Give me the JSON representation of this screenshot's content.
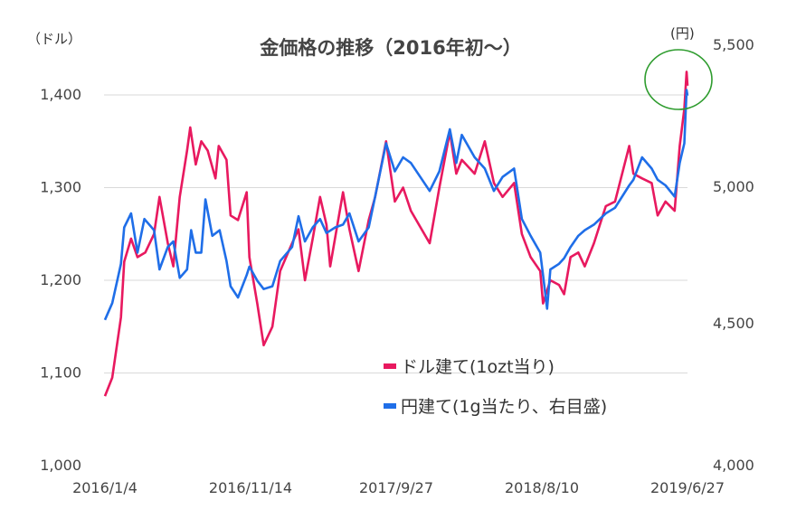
{
  "chart_data": {
    "type": "line",
    "title": "金価格の推移（2016年初～）",
    "y_left_unit": "（ドル）",
    "y_right_unit": "(円)",
    "x_ticks": [
      "2016/1/4",
      "2016/11/14",
      "2017/9/27",
      "2018/8/10",
      "2019/6/27"
    ],
    "y_left_ticks": [
      "1,000",
      "1,100",
      "1,200",
      "1,300",
      "1,400"
    ],
    "y_right_ticks": [
      "4,000",
      "4,500",
      "5,000",
      "5,500"
    ],
    "ylim_left": [
      1000,
      1400
    ],
    "ylim_right": [
      4000,
      5500
    ],
    "grid": "horizontal",
    "legend_position": "bottom-right inside plot",
    "series": [
      {
        "name": "ドル建て(1ozt当り)",
        "axis": "left",
        "color": "#e8195f",
        "points": [
          [
            "2016/1/4",
            1075
          ],
          [
            "2016/1/20",
            1095
          ],
          [
            "2016/2/8",
            1160
          ],
          [
            "2016/2/15",
            1220
          ],
          [
            "2016/3/1",
            1245
          ],
          [
            "2016/3/15",
            1225
          ],
          [
            "2016/4/1",
            1230
          ],
          [
            "2016/4/20",
            1250
          ],
          [
            "2016/5/2",
            1290
          ],
          [
            "2016/5/20",
            1240
          ],
          [
            "2016/6/1",
            1215
          ],
          [
            "2016/6/15",
            1290
          ],
          [
            "2016/7/1",
            1340
          ],
          [
            "2016/7/8",
            1365
          ],
          [
            "2016/7/20",
            1325
          ],
          [
            "2016/8/1",
            1350
          ],
          [
            "2016/8/15",
            1340
          ],
          [
            "2016/9/1",
            1310
          ],
          [
            "2016/9/8",
            1345
          ],
          [
            "2016/9/25",
            1330
          ],
          [
            "2016/10/4",
            1270
          ],
          [
            "2016/10/20",
            1265
          ],
          [
            "2016/11/8",
            1295
          ],
          [
            "2016/11/14",
            1225
          ],
          [
            "2016/12/1",
            1175
          ],
          [
            "2016/12/15",
            1130
          ],
          [
            "2017/1/3",
            1150
          ],
          [
            "2017/1/20",
            1210
          ],
          [
            "2017/2/15",
            1240
          ],
          [
            "2017/3/1",
            1255
          ],
          [
            "2017/3/15",
            1200
          ],
          [
            "2017/4/1",
            1245
          ],
          [
            "2017/4/17",
            1290
          ],
          [
            "2017/5/1",
            1260
          ],
          [
            "2017/5/9",
            1215
          ],
          [
            "2017/6/6",
            1295
          ],
          [
            "2017/6/20",
            1255
          ],
          [
            "2017/7/10",
            1210
          ],
          [
            "2017/8/1",
            1265
          ],
          [
            "2017/8/15",
            1290
          ],
          [
            "2017/9/8",
            1350
          ],
          [
            "2017/9/27",
            1285
          ],
          [
            "2017/10/15",
            1300
          ],
          [
            "2017/11/1",
            1275
          ],
          [
            "2017/12/12",
            1240
          ],
          [
            "2018/1/2",
            1300
          ],
          [
            "2018/1/25",
            1360
          ],
          [
            "2018/2/8",
            1315
          ],
          [
            "2018/2/20",
            1330
          ],
          [
            "2018/3/20",
            1315
          ],
          [
            "2018/4/11",
            1350
          ],
          [
            "2018/5/1",
            1305
          ],
          [
            "2018/5/20",
            1290
          ],
          [
            "2018/6/14",
            1305
          ],
          [
            "2018/7/1",
            1250
          ],
          [
            "2018/7/20",
            1225
          ],
          [
            "2018/8/10",
            1210
          ],
          [
            "2018/8/16",
            1175
          ],
          [
            "2018/9/1",
            1200
          ],
          [
            "2018/9/20",
            1195
          ],
          [
            "2018/10/1",
            1185
          ],
          [
            "2018/10/15",
            1225
          ],
          [
            "2018/11/1",
            1230
          ],
          [
            "2018/11/15",
            1215
          ],
          [
            "2018/12/5",
            1240
          ],
          [
            "2018/12/31",
            1280
          ],
          [
            "2019/1/20",
            1285
          ],
          [
            "2019/2/20",
            1345
          ],
          [
            "2019/3/1",
            1315
          ],
          [
            "2019/3/20",
            1310
          ],
          [
            "2019/4/10",
            1305
          ],
          [
            "2019/4/23",
            1270
          ],
          [
            "2019/5/10",
            1285
          ],
          [
            "2019/5/30",
            1275
          ],
          [
            "2019/6/10",
            1345
          ],
          [
            "2019/6/20",
            1385
          ],
          [
            "2019/6/25",
            1425
          ],
          [
            "2019/6/27",
            1410
          ]
        ]
      },
      {
        "name": "円建て(1g当たり、右目盛)",
        "axis": "right",
        "color": "#1f6ee8",
        "points": [
          [
            "2016/1/4",
            4520
          ],
          [
            "2016/1/20",
            4580
          ],
          [
            "2016/2/8",
            4720
          ],
          [
            "2016/2/15",
            4850
          ],
          [
            "2016/3/1",
            4900
          ],
          [
            "2016/3/15",
            4760
          ],
          [
            "2016/3/30",
            4880
          ],
          [
            "2016/4/20",
            4840
          ],
          [
            "2016/5/2",
            4700
          ],
          [
            "2016/5/20",
            4780
          ],
          [
            "2016/6/1",
            4800
          ],
          [
            "2016/6/15",
            4670
          ],
          [
            "2016/7/1",
            4700
          ],
          [
            "2016/7/10",
            4840
          ],
          [
            "2016/7/20",
            4760
          ],
          [
            "2016/8/1",
            4760
          ],
          [
            "2016/8/10",
            4950
          ],
          [
            "2016/8/25",
            4820
          ],
          [
            "2016/9/10",
            4840
          ],
          [
            "2016/9/25",
            4730
          ],
          [
            "2016/10/4",
            4640
          ],
          [
            "2016/10/20",
            4600
          ],
          [
            "2016/11/8",
            4680
          ],
          [
            "2016/11/14",
            4710
          ],
          [
            "2016/12/1",
            4660
          ],
          [
            "2016/12/15",
            4630
          ],
          [
            "2017/1/3",
            4640
          ],
          [
            "2017/1/20",
            4730
          ],
          [
            "2017/2/15",
            4780
          ],
          [
            "2017/3/1",
            4890
          ],
          [
            "2017/3/15",
            4800
          ],
          [
            "2017/4/1",
            4850
          ],
          [
            "2017/4/17",
            4880
          ],
          [
            "2017/5/1",
            4830
          ],
          [
            "2017/5/20",
            4850
          ],
          [
            "2017/6/6",
            4860
          ],
          [
            "2017/6/20",
            4900
          ],
          [
            "2017/7/10",
            4800
          ],
          [
            "2017/8/1",
            4850
          ],
          [
            "2017/8/15",
            4960
          ],
          [
            "2017/9/8",
            5150
          ],
          [
            "2017/9/27",
            5050
          ],
          [
            "2017/10/15",
            5100
          ],
          [
            "2017/11/1",
            5080
          ],
          [
            "2017/12/12",
            4980
          ],
          [
            "2018/1/2",
            5050
          ],
          [
            "2018/1/25",
            5200
          ],
          [
            "2018/2/8",
            5080
          ],
          [
            "2018/2/20",
            5180
          ],
          [
            "2018/3/20",
            5100
          ],
          [
            "2018/4/11",
            5060
          ],
          [
            "2018/5/1",
            4980
          ],
          [
            "2018/5/20",
            5030
          ],
          [
            "2018/6/14",
            5060
          ],
          [
            "2018/7/1",
            4880
          ],
          [
            "2018/7/20",
            4820
          ],
          [
            "2018/8/10",
            4760
          ],
          [
            "2018/8/16",
            4680
          ],
          [
            "2018/8/25",
            4560
          ],
          [
            "2018/9/1",
            4700
          ],
          [
            "2018/9/20",
            4720
          ],
          [
            "2018/10/1",
            4740
          ],
          [
            "2018/10/15",
            4780
          ],
          [
            "2018/11/1",
            4820
          ],
          [
            "2018/11/15",
            4840
          ],
          [
            "2018/12/5",
            4860
          ],
          [
            "2018/12/31",
            4900
          ],
          [
            "2019/1/20",
            4920
          ],
          [
            "2019/2/20",
            5000
          ],
          [
            "2019/3/1",
            5020
          ],
          [
            "2019/3/20",
            5100
          ],
          [
            "2019/4/10",
            5060
          ],
          [
            "2019/4/23",
            5020
          ],
          [
            "2019/5/10",
            5000
          ],
          [
            "2019/5/30",
            4960
          ],
          [
            "2019/6/10",
            5080
          ],
          [
            "2019/6/20",
            5150
          ],
          [
            "2019/6/25",
            5340
          ],
          [
            "2019/6/27",
            5320
          ]
        ]
      }
    ],
    "annotations": [
      {
        "type": "circle",
        "color": "#2e9c2e",
        "around": "2019/6 peak"
      }
    ]
  }
}
